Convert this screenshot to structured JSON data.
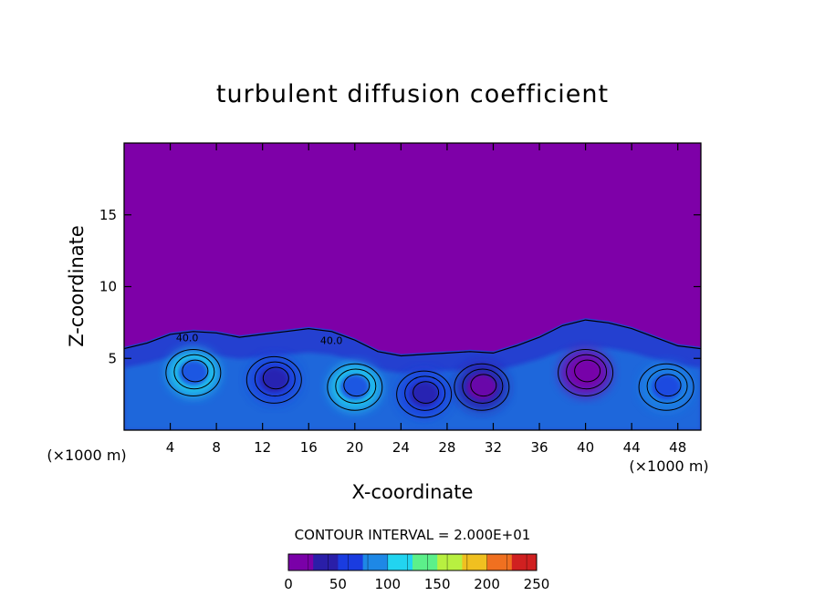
{
  "chart_data": {
    "type": "heatmap",
    "title": "turbulent diffusion coefficient",
    "xlabel": "X-coordinate",
    "ylabel": "Z-coordinate",
    "x_unit": "(×1000 m)",
    "z_unit": "(×1000 m)",
    "xlim": [
      0,
      50
    ],
    "ylim": [
      0,
      20
    ],
    "x_ticks": [
      4,
      8,
      12,
      16,
      20,
      24,
      28,
      32,
      36,
      40,
      44,
      48
    ],
    "y_ticks": [
      5,
      10,
      15
    ],
    "contour_interval_label": "CONTOUR INTERVAL = 2.000E+01",
    "contour_labels": [
      "40.0",
      "40.0"
    ],
    "colorbar": {
      "min": 0,
      "max": 250,
      "ticks": [
        0,
        50,
        100,
        150,
        200,
        250
      ],
      "colors": [
        "#7a00a8",
        "#2a1ea8",
        "#1a3ce0",
        "#1e88e6",
        "#22d4f0",
        "#5cf08a",
        "#b8f040",
        "#f0c020",
        "#f07020",
        "#d02020"
      ]
    },
    "background_color": "#7e00a8",
    "turbulent_layer": {
      "boundary_top": [
        [
          0,
          5.8
        ],
        [
          2,
          6.2
        ],
        [
          4,
          6.8
        ],
        [
          6,
          7.0
        ],
        [
          8,
          6.9
        ],
        [
          10,
          6.6
        ],
        [
          12,
          6.8
        ],
        [
          14,
          7.0
        ],
        [
          16,
          7.2
        ],
        [
          18,
          7.0
        ],
        [
          20,
          6.4
        ],
        [
          22,
          5.6
        ],
        [
          24,
          5.3
        ],
        [
          26,
          5.4
        ],
        [
          28,
          5.5
        ],
        [
          30,
          5.6
        ],
        [
          32,
          5.5
        ],
        [
          34,
          6.0
        ],
        [
          36,
          6.6
        ],
        [
          38,
          7.4
        ],
        [
          40,
          7.8
        ],
        [
          42,
          7.6
        ],
        [
          44,
          7.2
        ],
        [
          46,
          6.6
        ],
        [
          48,
          6.0
        ],
        [
          50,
          5.8
        ]
      ],
      "eddies": [
        {
          "x": 6,
          "z": 4.0,
          "value": 110
        },
        {
          "x": 13,
          "z": 3.5,
          "value": 70
        },
        {
          "x": 20,
          "z": 3.0,
          "value": 100
        },
        {
          "x": 26,
          "z": 2.5,
          "value": 60
        },
        {
          "x": 31,
          "z": 3.0,
          "value": 40
        },
        {
          "x": 40,
          "z": 4.0,
          "value": 20
        },
        {
          "x": 47,
          "z": 3.0,
          "value": 90
        }
      ]
    }
  }
}
